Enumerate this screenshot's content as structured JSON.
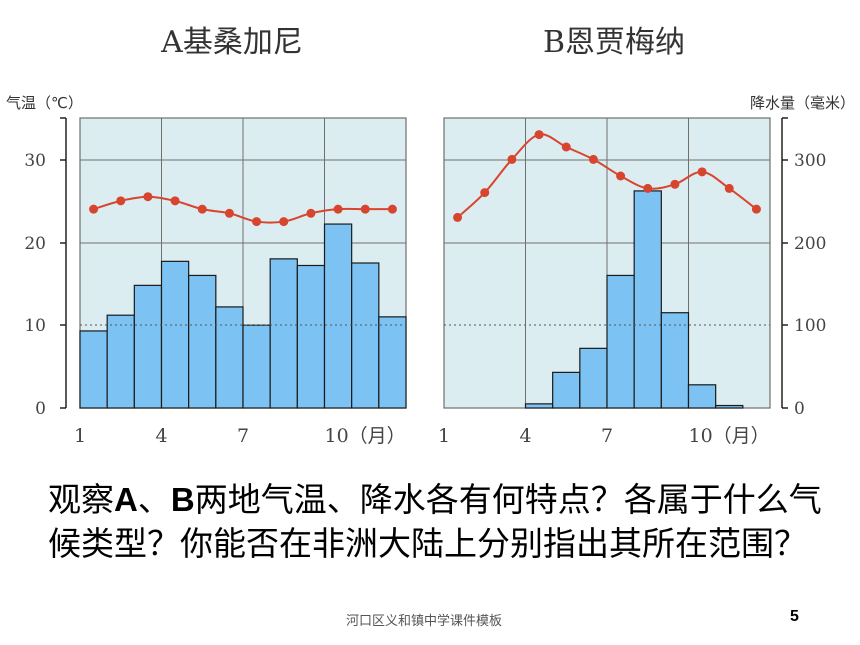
{
  "chart_data": [
    {
      "type": "bar+line",
      "title": "A基桑加尼",
      "left_axis_label": "气温（℃）",
      "months": [
        1,
        2,
        3,
        4,
        5,
        6,
        7,
        8,
        9,
        10,
        11,
        12
      ],
      "x_tick_labels": [
        "1",
        "4",
        "7",
        "10（月）"
      ],
      "temperature_c": [
        24,
        25,
        25.5,
        25,
        24,
        23.5,
        22.5,
        22.5,
        23.5,
        24,
        24,
        24
      ],
      "precipitation_mm": [
        93,
        112,
        148,
        177,
        160,
        122,
        100,
        180,
        172,
        222,
        175,
        110
      ],
      "temp_ylim": [
        0,
        35
      ],
      "temp_ticks": [
        "0",
        "10",
        "20",
        "30"
      ],
      "precip_ylim": [
        0,
        350
      ]
    },
    {
      "type": "bar+line",
      "title": "B恩贾梅纳",
      "right_axis_label": "降水量（毫米）",
      "months": [
        1,
        2,
        3,
        4,
        5,
        6,
        7,
        8,
        9,
        10,
        11,
        12
      ],
      "x_tick_labels": [
        "1",
        "4",
        "7",
        "10（月）"
      ],
      "temperature_c": [
        23,
        26,
        30,
        33,
        31.5,
        30,
        28,
        26.5,
        27,
        28.5,
        26.5,
        24
      ],
      "precipitation_mm": [
        0,
        0,
        0,
        5,
        43,
        72,
        160,
        262,
        115,
        28,
        3,
        0
      ],
      "precip_ylim": [
        0,
        350
      ],
      "precip_ticks": [
        "0",
        "100",
        "200",
        "300"
      ],
      "temp_ylim": [
        0,
        35
      ]
    }
  ],
  "question": {
    "prefix": "观察",
    "a": "A",
    "sep": "、",
    "b": "B",
    "rest": "两地气温、降水各有何特点？各属于什么气候类型？你能否在非洲大陆上分别指出其所在范围？"
  },
  "footer": "河口区义和镇中学课件模板",
  "page_number": "5",
  "colors": {
    "plot_bg": "#dcedf1",
    "bar": "#7cc2f2",
    "bar_stroke": "#1a1a1a",
    "line": "#d8452f",
    "grid": "#6f6f6f"
  }
}
